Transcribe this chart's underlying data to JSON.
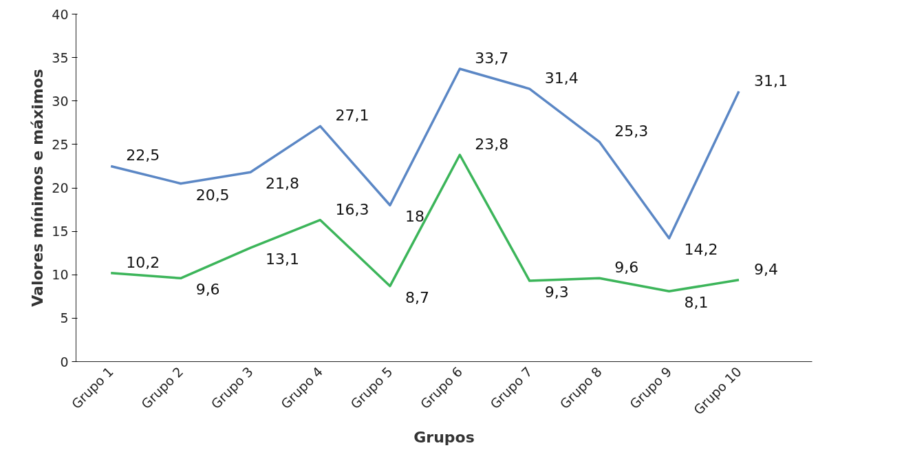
{
  "chart_data": {
    "type": "line",
    "xlabel": "Grupos",
    "ylabel": "Valores mínimos e máximos",
    "categories": [
      "Grupo 1",
      "Grupo 2",
      "Grupo 3",
      "Grupo 4",
      "Grupo 5",
      "Grupo 6",
      "Grupo 7",
      "Grupo 8",
      "Grupo 9",
      "Grupo 10"
    ],
    "series": [
      {
        "color": "#5b87c5",
        "values": [
          22.5,
          20.5,
          21.8,
          27.1,
          18,
          33.7,
          31.4,
          25.3,
          14.2,
          31.1
        ],
        "value_labels": [
          "22,5",
          "20,5",
          "21,8",
          "27,1",
          "18",
          "33,7",
          "31,4",
          "25,3",
          "14,2",
          "31,1"
        ]
      },
      {
        "color": "#3cb55a",
        "values": [
          10.2,
          9.6,
          13.1,
          16.3,
          8.7,
          23.8,
          9.3,
          9.6,
          8.1,
          9.4
        ],
        "value_labels": [
          "10,2",
          "9,6",
          "13,1",
          "16,3",
          "8,7",
          "23,8",
          "9,3",
          "9,6",
          "8,1",
          "9,4"
        ]
      }
    ],
    "ylim": [
      0,
      40
    ],
    "yticks": [
      0,
      5,
      10,
      15,
      20,
      25,
      30,
      35,
      40
    ],
    "grid": false,
    "marker": "none",
    "line_style": "solid"
  }
}
